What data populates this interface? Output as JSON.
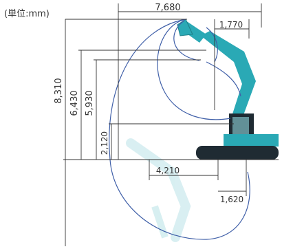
{
  "unit_label": "(単位:mm)",
  "dimensions": {
    "max_reach": "7,680",
    "front_swing_radius": "1,770",
    "max_digging_height": "8,310",
    "max_dumping_height": "6,430",
    "max_digging_height_inner": "5,930",
    "ground_clearance": "2,120",
    "min_swing_radius": "4,210",
    "tail_radius": "1,620"
  },
  "colors": {
    "dimension_line": "#333333",
    "envelope_line": "#3f5fa8",
    "machine_body": "#2aa9b5",
    "machine_dark": "#1f2b33"
  }
}
